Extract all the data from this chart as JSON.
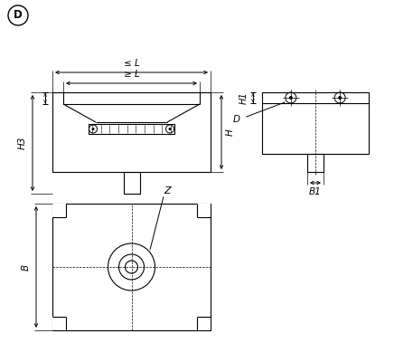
{
  "bg_color": "#ffffff",
  "line_color": "#000000",
  "title_label": "D",
  "dim_labels": {
    "leL": "≤ L",
    "geL": "≥ L",
    "H3": "H3",
    "H": "H",
    "H1": "H1",
    "B": "B",
    "B1": "B1",
    "D_label": "D",
    "Z": "Z"
  }
}
